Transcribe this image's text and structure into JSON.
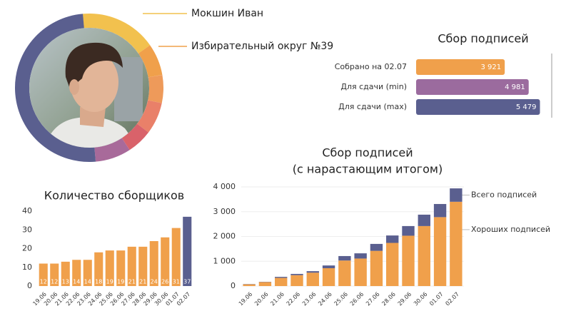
{
  "header": {
    "name": "Мокшин Иван",
    "district": "Избирательный округ №39"
  },
  "chart_data": [
    {
      "type": "barh",
      "title": "Сбор подписей",
      "categories": [
        "Собрано на 02.07",
        "Для сдачи (min)",
        "Для сдачи (max)"
      ],
      "values": [
        3921,
        4981,
        5479
      ],
      "value_labels": [
        "3 921",
        "4 981",
        "5 479"
      ],
      "colors": [
        "#f0a04b",
        "#9b6b9e",
        "#5a5f8f"
      ],
      "xlim": [
        0,
        6000
      ]
    },
    {
      "type": "bar",
      "title": "Количество сборщиков",
      "categories": [
        "19.06",
        "20.06",
        "21.06",
        "22.06",
        "23.06",
        "24.06",
        "25.06",
        "26.06",
        "27.06",
        "28.06",
        "29.06",
        "30.06",
        "01.07",
        "02.07"
      ],
      "values": [
        12,
        12,
        13,
        14,
        14,
        18,
        19,
        19,
        21,
        21,
        24,
        26,
        31,
        37
      ],
      "colors": [
        "#f0a04b",
        "#f0a04b",
        "#f0a04b",
        "#f0a04b",
        "#f0a04b",
        "#f0a04b",
        "#f0a04b",
        "#f0a04b",
        "#f0a04b",
        "#f0a04b",
        "#f0a04b",
        "#f0a04b",
        "#f0a04b",
        "#5a5f8f"
      ],
      "ylim": [
        0,
        40
      ],
      "yticks": [
        0,
        10,
        20,
        30,
        40
      ],
      "grid": false
    },
    {
      "type": "bar",
      "stacked": true,
      "title": "Сбор подписей",
      "subtitle": "(с нарастающим итогом)",
      "categories": [
        "19.06",
        "20.06",
        "21.06",
        "22.06",
        "23.06",
        "24.06",
        "25.06",
        "26.06",
        "27.06",
        "28.06",
        "29.06",
        "30.06",
        "01.07",
        "02.07"
      ],
      "series": [
        {
          "name": "Хороших подписей",
          "color": "#f0a04b",
          "values": [
            70,
            160,
            330,
            440,
            540,
            720,
            1030,
            1110,
            1420,
            1740,
            2030,
            2420,
            2780,
            3400
          ]
        },
        {
          "name": "Всего подписей",
          "color": "#5a5f8f",
          "values": [
            10,
            10,
            40,
            50,
            60,
            110,
            180,
            210,
            280,
            300,
            390,
            460,
            530,
            540
          ]
        }
      ],
      "ylim": [
        0,
        4000
      ],
      "yticks": [
        0,
        {
          "value": 1000,
          "label": "1 000"
        },
        {
          "value": 2000,
          "label": "2 000"
        },
        {
          "value": 3000,
          "label": "3 000"
        },
        {
          "value": 4000,
          "label": "4 000"
        }
      ],
      "grid": true
    }
  ]
}
